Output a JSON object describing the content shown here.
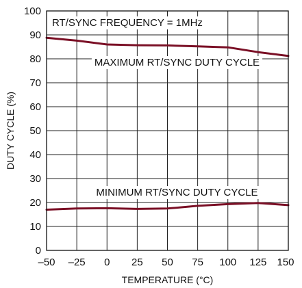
{
  "chart_data": {
    "type": "line",
    "title": "",
    "xlabel": "TEMPERATURE (°C)",
    "ylabel": "DUTY CYCLE (%)",
    "xlim": [
      -50,
      150
    ],
    "ylim": [
      0,
      100
    ],
    "x_ticks": [
      -50,
      -25,
      0,
      25,
      50,
      75,
      100,
      125,
      150
    ],
    "x_tick_labels": [
      "–50",
      "–25",
      "0",
      "25",
      "50",
      "75",
      "100",
      "125",
      "150"
    ],
    "y_ticks": [
      0,
      10,
      20,
      30,
      40,
      50,
      60,
      70,
      80,
      90,
      100
    ],
    "y_tick_labels": [
      "0",
      "10",
      "20",
      "30",
      "40",
      "50",
      "60",
      "70",
      "80",
      "90",
      "100"
    ],
    "grid": true,
    "annotations": [
      {
        "id": "condition",
        "text": "RT/SYNC FREQUENCY = 1MHz"
      },
      {
        "id": "max-label",
        "text": "MAXIMUM RT/SYNC DUTY CYCLE"
      },
      {
        "id": "min-label",
        "text": "MINIMUM RT/SYNC DUTY CYCLE"
      }
    ],
    "series": [
      {
        "color": "#7a0f25",
        "x": [
          -50,
          -25,
          0,
          25,
          50,
          75,
          100,
          125,
          150
        ],
        "y": [
          88.8,
          87.6,
          86.0,
          85.7,
          85.6,
          85.2,
          84.8,
          82.8,
          81.2
        ]
      },
      {
        "color": "#7a0f25",
        "x": [
          -50,
          -25,
          0,
          25,
          50,
          75,
          100,
          125,
          150
        ],
        "y": [
          17.0,
          17.5,
          17.6,
          17.3,
          17.5,
          18.6,
          19.3,
          19.8,
          18.9
        ]
      }
    ]
  }
}
